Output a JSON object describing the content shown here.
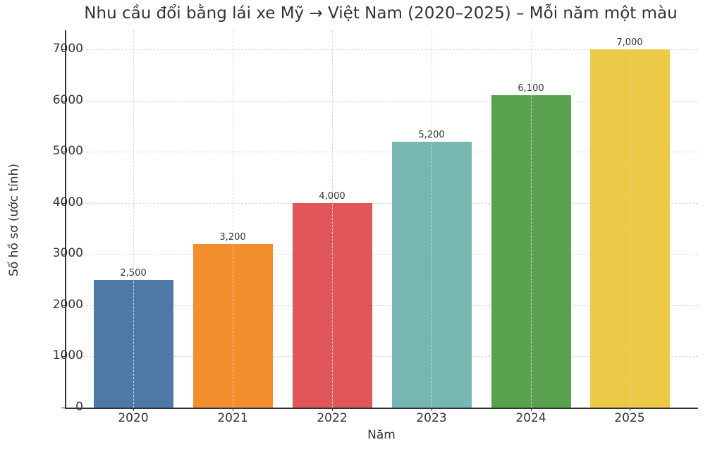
{
  "chart": {
    "title": "Nhu cầu đổi bằng lái xe Mỹ → Việt Nam (2020–2025) – Mỗi năm một màu",
    "xlabel": "Năm",
    "ylabel": "Số hồ sơ (ước tính)",
    "yticks": [
      "0",
      "1000",
      "2000",
      "3000",
      "4000",
      "5000",
      "6000",
      "7000"
    ],
    "bars": [
      {
        "year": "2020",
        "value": 2500,
        "label": "2,500",
        "color": "#4e79a7"
      },
      {
        "year": "2021",
        "value": 3200,
        "label": "3,200",
        "color": "#f28e2b"
      },
      {
        "year": "2022",
        "value": 4000,
        "label": "4,000",
        "color": "#e15759"
      },
      {
        "year": "2023",
        "value": 5200,
        "label": "5,200",
        "color": "#76b7b2"
      },
      {
        "year": "2024",
        "value": 6100,
        "label": "6,100",
        "color": "#59a14f"
      },
      {
        "year": "2025",
        "value": 7000,
        "label": "7,000",
        "color": "#edc948"
      }
    ]
  },
  "chart_data": {
    "type": "bar",
    "title": "Nhu cầu đổi bằng lái xe Mỹ → Việt Nam (2020–2025) – Mỗi năm một màu",
    "xlabel": "Năm",
    "ylabel": "Số hồ sơ (ước tính)",
    "categories": [
      "2020",
      "2021",
      "2022",
      "2023",
      "2024",
      "2025"
    ],
    "values": [
      2500,
      3200,
      4000,
      5200,
      6100,
      7000
    ],
    "data_labels": [
      "2,500",
      "3,200",
      "4,000",
      "5,200",
      "6,100",
      "7,000"
    ],
    "colors": [
      "#4e79a7",
      "#f28e2b",
      "#e15759",
      "#76b7b2",
      "#59a14f",
      "#edc948"
    ],
    "ylim": [
      0,
      7350
    ],
    "yticks": [
      0,
      1000,
      2000,
      3000,
      4000,
      5000,
      6000,
      7000
    ],
    "grid": true,
    "grid_style": "dashed",
    "legend": false
  }
}
